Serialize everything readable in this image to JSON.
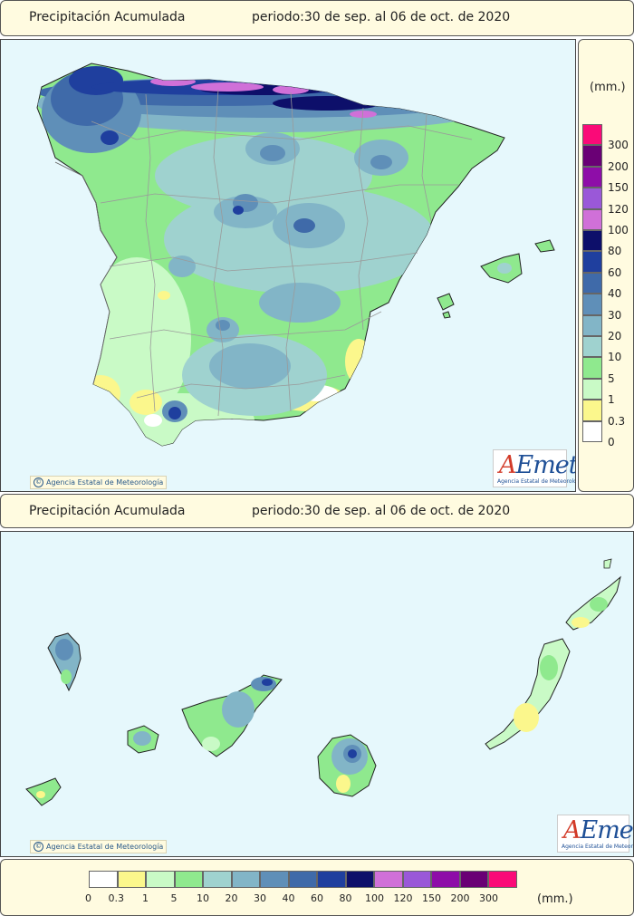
{
  "top": {
    "header": {
      "title": "Precipitación Acumulada",
      "period": "periodo:30 de sep. al 06 de oct. de 2020"
    },
    "copyright": "Agencia Estatal de Meteorología"
  },
  "canarias": {
    "header": {
      "title": "Precipitación Acumulada",
      "period": "periodo:30 de sep. al 06 de oct. de 2020"
    },
    "copyright": "Agencia Estatal de Meteorología"
  },
  "logo": {
    "word_a": "A",
    "word_rest": "Emet",
    "subtitle": "Agencia Estatal de Meteorología"
  },
  "legend": {
    "unit": "(mm.)",
    "levels": [
      {
        "label": "0",
        "color": "#ffffff"
      },
      {
        "label": "0.3",
        "color": "#fbf78c"
      },
      {
        "label": "1",
        "color": "#c9fac6"
      },
      {
        "label": "5",
        "color": "#8fe98e"
      },
      {
        "label": "10",
        "color": "#9fd2cf"
      },
      {
        "label": "20",
        "color": "#82b5c7"
      },
      {
        "label": "30",
        "color": "#5f8fb8"
      },
      {
        "label": "40",
        "color": "#3f6aa9"
      },
      {
        "label": "60",
        "color": "#1f3f9e"
      },
      {
        "label": "80",
        "color": "#0d0f6a"
      },
      {
        "label": "100",
        "color": "#d070d8"
      },
      {
        "label": "120",
        "color": "#9a58d8"
      },
      {
        "label": "150",
        "color": "#8e0da8"
      },
      {
        "label": "200",
        "color": "#6a0075"
      },
      {
        "label": "300",
        "color": "#fa0a78"
      }
    ]
  }
}
